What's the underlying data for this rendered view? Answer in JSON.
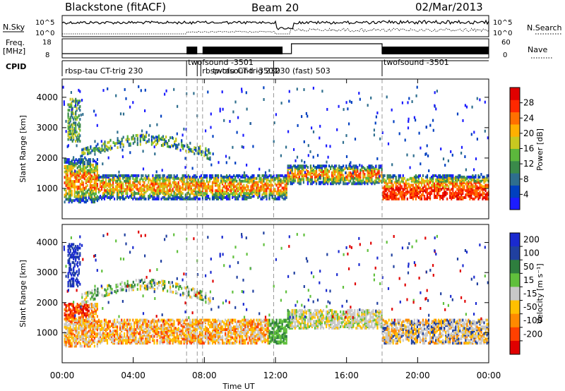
{
  "header": {
    "station": "Blackstone (fitACF)",
    "beam": "Beam 20",
    "date": "02/Mar/2013"
  },
  "panels": {
    "nsky_label": "N.Sky",
    "nsky_ticks": [
      "10^5",
      "10^0"
    ],
    "nsearch_label": "N.Search",
    "nsearch_ticks": [
      "10^5",
      "10^0"
    ],
    "freq_label": "Freq.",
    "freq_unit": "[MHz]",
    "freq_ticks": [
      "18",
      "8"
    ],
    "nave_label": "Nave",
    "nave_ticks": [
      "60",
      "0"
    ],
    "cpid_label": "CPID"
  },
  "cpid_segments": [
    {
      "label": "rbsp-tau CT-trig 230",
      "start_hour": 0.0
    },
    {
      "label": "twofsound -3501",
      "start_hour": 7.0
    },
    {
      "label": "twofsound -3501",
      "start_hour": 7.6
    },
    {
      "label": "rbsp-tau CT-trig 230",
      "start_hour": 7.8
    },
    {
      "label": "230 (fast) 503",
      "start_hour": 11.9
    },
    {
      "label": "twofsound -3501",
      "start_hour": 18.0
    }
  ],
  "chart_data": [
    {
      "type": "heatmap",
      "quantity": "Power",
      "ylabel": "Slant Range [km]",
      "xlabel": "",
      "x_range_hours": [
        0,
        24
      ],
      "ylim": [
        0,
        4600
      ],
      "yticks": [
        1000,
        2000,
        3000,
        4000
      ],
      "colorbar": {
        "label": "Power [dB]",
        "ticks": [
          4,
          8,
          12,
          16,
          20,
          24,
          28
        ],
        "range": [
          0,
          32
        ],
        "colors": [
          "#1c1cff",
          "#0040c0",
          "#2e6e8e",
          "#3a8a4a",
          "#5cb83c",
          "#c8c820",
          "#ffb000",
          "#ff7000",
          "#ff2800",
          "#e00000"
        ]
      },
      "dashed_lines_hours": [
        7.0,
        7.6,
        7.9,
        11.9,
        18.0
      ]
    },
    {
      "type": "heatmap",
      "quantity": "Velocity",
      "ylabel": "Slant Range [km]",
      "xlabel": "Time UT",
      "x_range_hours": [
        0,
        24
      ],
      "ylim": [
        0,
        4600
      ],
      "yticks": [
        1000,
        2000,
        3000,
        4000
      ],
      "xticks": [
        "00:00",
        "04:00",
        "08:00",
        "12:00",
        "16:00",
        "20:00",
        "00:00"
      ],
      "colorbar": {
        "label": "Velocity [m s⁻¹]",
        "ticks": [
          "200",
          "100",
          "50",
          "15",
          "-15",
          "-50",
          "-100",
          "-200"
        ],
        "colors": [
          "#1a2ad0",
          "#2040a0",
          "#2e7e3e",
          "#60c03c",
          "#c8c8c8",
          "#ffc000",
          "#ff8a00",
          "#ff4000",
          "#e00000"
        ]
      },
      "dashed_lines_hours": [
        7.0,
        7.6,
        7.9,
        11.9,
        18.0
      ]
    }
  ]
}
